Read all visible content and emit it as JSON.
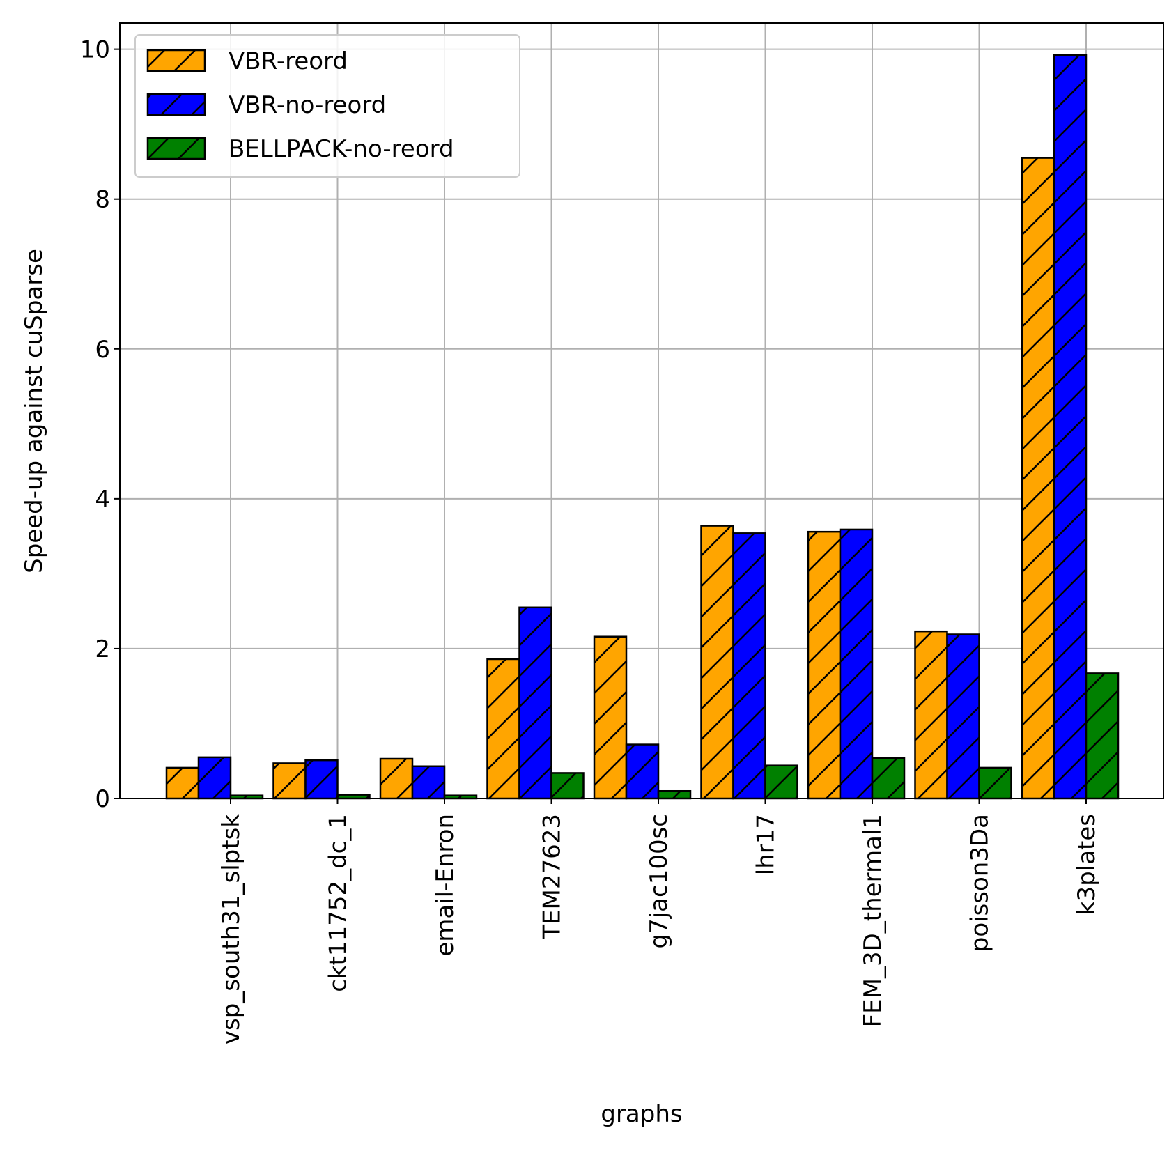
{
  "chart_data": {
    "type": "bar",
    "title": "",
    "xlabel": "graphs",
    "ylabel": "Speed-up against cuSparse",
    "ylim": [
      0,
      10.35
    ],
    "yticks": [
      0,
      2,
      4,
      6,
      8,
      10
    ],
    "grid": true,
    "legend_position": "top-left",
    "categories": [
      "vsp_south31_slptsk",
      "ckt11752_dc_1",
      "email-Enron",
      "TEM27623",
      "g7jac100sc",
      "lhr17",
      "FEM_3D_thermal1",
      "poisson3Da",
      "k3plates"
    ],
    "series": [
      {
        "name": "VBR-reord",
        "color": "#ffa500",
        "hatch": "diagonal",
        "values": [
          0.41,
          0.47,
          0.53,
          1.86,
          2.16,
          3.64,
          3.56,
          2.23,
          8.55
        ]
      },
      {
        "name": "VBR-no-reord",
        "color": "#0000ff",
        "hatch": "diagonal",
        "values": [
          0.55,
          0.51,
          0.43,
          2.55,
          0.72,
          3.54,
          3.59,
          2.19,
          9.92
        ]
      },
      {
        "name": "BELLPACK-no-reord",
        "color": "#008000",
        "hatch": "diagonal",
        "values": [
          0.04,
          0.05,
          0.04,
          0.34,
          0.1,
          0.44,
          0.54,
          0.41,
          1.67
        ]
      }
    ]
  }
}
